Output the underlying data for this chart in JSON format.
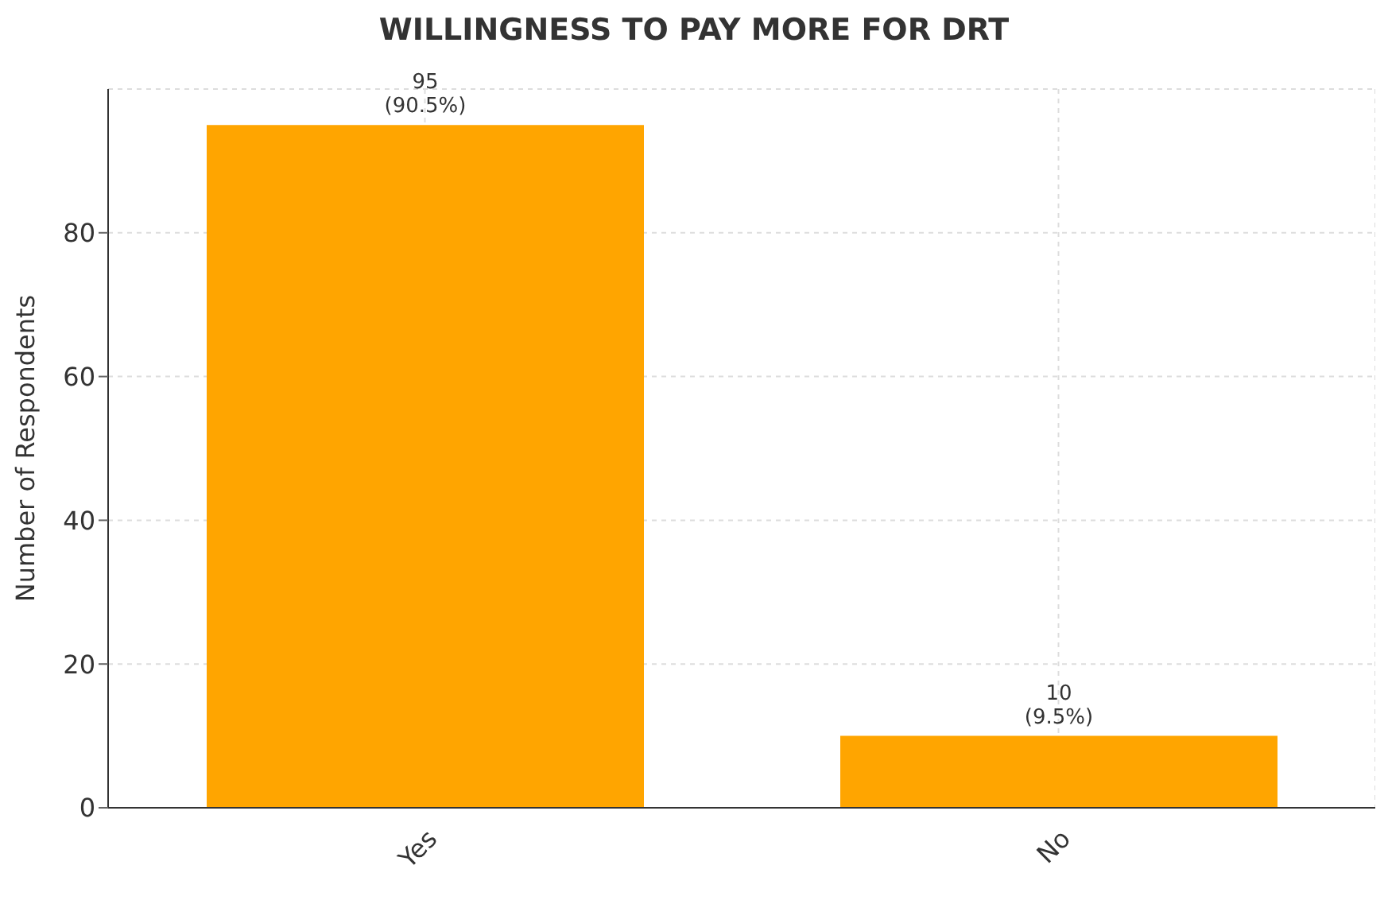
{
  "chart_data": {
    "type": "bar",
    "title": "WILLINGNESS TO PAY MORE FOR DRT",
    "ylabel": "Number of Respondents",
    "categories": [
      "Yes",
      "No"
    ],
    "values": [
      95,
      10
    ],
    "value_labels": [
      "95\n(90.5%)",
      "10\n(9.5%)"
    ],
    "color": "#ffa500",
    "ylim": [
      0,
      100
    ],
    "yticks": [
      0,
      20,
      40,
      60,
      80
    ],
    "grid": true
  }
}
